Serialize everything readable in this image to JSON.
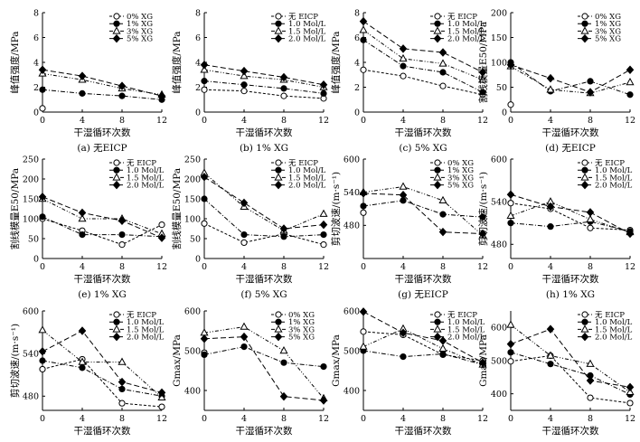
{
  "x_values": [
    0,
    4,
    8,
    12
  ],
  "x_ticks": [
    "0",
    "4",
    "8",
    "12"
  ],
  "xlabel": "干湿循环次数",
  "series_styles": [
    {
      "marker": "circle-open",
      "dash": "3,2"
    },
    {
      "marker": "circle-filled",
      "dash": "5,2,1,2"
    },
    {
      "marker": "triangle-open",
      "dash": "4,2,1,2,1,2"
    },
    {
      "marker": "diamond-filled",
      "dash": "6,3"
    }
  ],
  "chart_data": [
    {
      "type": "line",
      "caption": "(a) 无EICP",
      "ylabel": "峰值强度/MPa",
      "ylim": [
        0,
        8
      ],
      "yticks": [
        "0",
        "2",
        "4",
        "6",
        "8"
      ],
      "series": [
        {
          "name": "0% XG",
          "values": [
            0.3,
            null,
            null,
            null
          ]
        },
        {
          "name": "1% XG",
          "values": [
            1.8,
            1.5,
            1.3,
            1.0
          ]
        },
        {
          "name": "3% XG",
          "values": [
            3.1,
            2.6,
            1.9,
            1.4
          ]
        },
        {
          "name": "5% XG",
          "values": [
            3.4,
            2.9,
            2.1,
            1.3
          ]
        }
      ]
    },
    {
      "type": "line",
      "caption": "(b) 1% XG",
      "ylabel": "峰值强度/MPa",
      "ylim": [
        0,
        8
      ],
      "yticks": [
        "0",
        "2",
        "4",
        "6",
        "8"
      ],
      "series": [
        {
          "name": "无 EICP",
          "values": [
            1.8,
            1.7,
            1.3,
            1.1
          ]
        },
        {
          "name": "1.0 Mol/L",
          "values": [
            2.5,
            2.2,
            1.9,
            1.5
          ]
        },
        {
          "name": "1.5 Mol/L",
          "values": [
            3.4,
            2.9,
            2.6,
            2.0
          ]
        },
        {
          "name": "2.0 Mol/L",
          "values": [
            3.8,
            3.3,
            2.8,
            2.2
          ]
        }
      ]
    },
    {
      "type": "line",
      "caption": "(c) 5% XG",
      "ylabel": "峰值强度/MPa",
      "ylim": [
        0,
        8
      ],
      "yticks": [
        "0",
        "2",
        "4",
        "6",
        "8"
      ],
      "series": [
        {
          "name": "无 EICP",
          "values": [
            3.4,
            2.9,
            2.1,
            1.4
          ]
        },
        {
          "name": "1.0 Mol/L",
          "values": [
            5.8,
            3.7,
            3.2,
            1.6
          ]
        },
        {
          "name": "1.5 Mol/L",
          "values": [
            6.6,
            4.3,
            3.9,
            2.6
          ]
        },
        {
          "name": "2.0 Mol/L",
          "values": [
            7.3,
            5.1,
            4.8,
            3.2
          ]
        }
      ]
    },
    {
      "type": "line",
      "caption": "(d) 无EICP",
      "ylabel": "割线模量E50/MPa",
      "ylim": [
        0,
        200
      ],
      "yticks": [
        "0",
        "50",
        "100",
        "150",
        "200"
      ],
      "series": [
        {
          "name": "0% XG",
          "values": [
            15,
            null,
            null,
            null
          ]
        },
        {
          "name": "1% XG",
          "values": [
            100,
            42,
            62,
            35
          ]
        },
        {
          "name": "3% XG",
          "values": [
            92,
            45,
            38,
            60
          ]
        },
        {
          "name": "5% XG",
          "values": [
            95,
            68,
            40,
            85
          ]
        }
      ]
    },
    {
      "type": "line",
      "caption": "(e) 1% XG",
      "ylabel": "割线模量E50/MPa",
      "ylim": [
        0,
        250
      ],
      "yticks": [
        "0",
        "50",
        "100",
        "150",
        "200",
        "250"
      ],
      "series": [
        {
          "name": "无 EICP",
          "values": [
            100,
            70,
            35,
            85
          ]
        },
        {
          "name": "1.0 Mol/L",
          "values": [
            105,
            60,
            60,
            55
          ]
        },
        {
          "name": "1.5 Mol/L",
          "values": [
            150,
            100,
            100,
            62
          ]
        },
        {
          "name": "2.0 Mol/L",
          "values": [
            155,
            115,
            95,
            52
          ]
        }
      ]
    },
    {
      "type": "line",
      "caption": "(f) 5% XG",
      "ylabel": "割线模量E50/MPa",
      "ylim": [
        0,
        250
      ],
      "yticks": [
        "0",
        "50",
        "100",
        "150",
        "200",
        "250"
      ],
      "series": [
        {
          "name": "无 EICP",
          "values": [
            88,
            40,
            62,
            35
          ]
        },
        {
          "name": "1.0 Mol/L",
          "values": [
            150,
            60,
            55,
            60
          ]
        },
        {
          "name": "1.5 Mol/L",
          "values": [
            215,
            130,
            70,
            112
          ]
        },
        {
          "name": "2.0 Mol/L",
          "values": [
            205,
            140,
            75,
            85
          ]
        }
      ]
    },
    {
      "type": "line",
      "caption": "(g) 无EICP",
      "ylabel": "剪切波速/(m·s⁻¹)",
      "ylim": [
        420,
        600
      ],
      "yticks": [
        "480",
        "540",
        "600"
      ],
      "series": [
        {
          "name": "0% XG",
          "values": [
            503,
            null,
            null,
            null
          ]
        },
        {
          "name": "1% XG",
          "values": [
            515,
            525,
            500,
            495
          ]
        },
        {
          "name": "3% XG",
          "values": [
            540,
            550,
            525,
            462
          ]
        },
        {
          "name": "5% XG",
          "values": [
            538,
            535,
            468,
            465
          ]
        }
      ]
    },
    {
      "type": "line",
      "caption": "(h) 1% XG",
      "ylabel": "剪切波速/(m·s⁻¹)",
      "ylim": [
        460,
        600
      ],
      "yticks": [
        "480",
        "540",
        "600"
      ],
      "series": [
        {
          "name": "无 EICP",
          "values": [
            538,
            530,
            503,
            500
          ]
        },
        {
          "name": "1.0 Mol/L",
          "values": [
            510,
            505,
            512,
            498
          ]
        },
        {
          "name": "1.5 Mol/L",
          "values": [
            520,
            540,
            515,
            497
          ]
        },
        {
          "name": "2.0 Mol/L",
          "values": [
            550,
            533,
            525,
            495
          ]
        }
      ]
    },
    {
      "type": "line",
      "caption": "(i) 5% XG",
      "ylabel": "剪切波速/(m·s⁻¹)",
      "ylim": [
        460,
        600
      ],
      "yticks": [
        "480",
        "540",
        "600"
      ],
      "series": [
        {
          "name": "无 EICP",
          "values": [
            518,
            532,
            470,
            465
          ]
        },
        {
          "name": "1.0 Mol/L",
          "values": [
            530,
            520,
            490,
            480
          ]
        },
        {
          "name": "1.5 Mol/L",
          "values": [
            573,
            528,
            528,
            478
          ]
        },
        {
          "name": "2.0 Mol/L",
          "values": [
            543,
            572,
            500,
            485
          ]
        }
      ]
    },
    {
      "type": "line",
      "caption": "(j) 无EICP",
      "ylabel": "Gmax/MPa",
      "ylim": [
        350,
        600
      ],
      "yticks": [
        "400",
        "500",
        "600"
      ],
      "series": [
        {
          "name": "0% XG",
          "values": [
            495,
            null,
            null,
            null
          ]
        },
        {
          "name": "1% XG",
          "values": [
            490,
            510,
            470,
            460
          ]
        },
        {
          "name": "3% XG",
          "values": [
            545,
            560,
            500,
            380
          ]
        },
        {
          "name": "5% XG",
          "values": [
            530,
            535,
            385,
            375
          ]
        }
      ]
    },
    {
      "type": "line",
      "caption": "(k) 1% XG",
      "ylabel": "Gmax/MPa",
      "ylim": [
        350,
        600
      ],
      "yticks": [
        "400",
        "500",
        "600"
      ],
      "series": [
        {
          "name": "无 EICP",
          "values": [
            548,
            540,
            490,
            475
          ]
        },
        {
          "name": "1.0 Mol/L",
          "values": [
            500,
            485,
            492,
            465
          ]
        },
        {
          "name": "1.5 Mol/L",
          "values": [
            510,
            555,
            505,
            465
          ]
        },
        {
          "name": "2.0 Mol/L",
          "values": [
            598,
            545,
            525,
            470
          ]
        }
      ]
    },
    {
      "type": "line",
      "caption": "(l) 5% XG",
      "ylabel": "Gmax/MPa",
      "ylim": [
        350,
        650
      ],
      "yticks": [
        "400",
        "500",
        "600"
      ],
      "series": [
        {
          "name": "无 EICP",
          "values": [
            498,
            515,
            388,
            372
          ]
        },
        {
          "name": "1.0 Mol/L",
          "values": [
            525,
            490,
            455,
            398
          ]
        },
        {
          "name": "1.5 Mol/L",
          "values": [
            608,
            515,
            490,
            405
          ]
        },
        {
          "name": "2.0 Mol/L",
          "values": [
            550,
            595,
            440,
            420
          ]
        }
      ]
    }
  ]
}
